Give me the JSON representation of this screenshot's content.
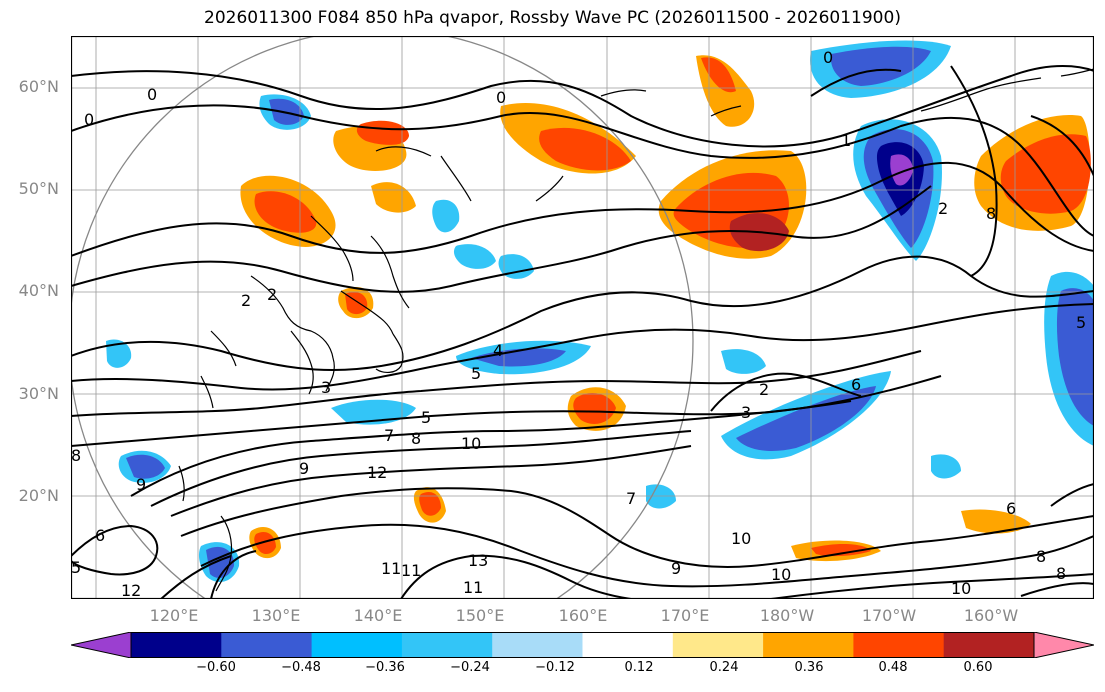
{
  "title": "2026011300 F084 850 hPa qvapor, Rossby Wave PC (2026011500 - 2026011900)",
  "latitude_labels": [
    "60°N",
    "50°N",
    "40°N",
    "30°N",
    "20°N"
  ],
  "longitude_labels": [
    "120°E",
    "130°E",
    "140°E",
    "150°E",
    "160°E",
    "170°E",
    "180°W",
    "170°W",
    "160°W"
  ],
  "colorbar": {
    "colors": [
      "#9b3fd0",
      "#00008b",
      "#3a5bd4",
      "#00bfff",
      "#33c5f7",
      "#a8dcf8",
      "#ffffff",
      "#ffe88a",
      "#ffa500",
      "#ff4500",
      "#b22222",
      "#ff88aa"
    ],
    "tick_labels": [
      "−0.60",
      "−0.48",
      "−0.36",
      "−0.24",
      "−0.12",
      "0.12",
      "0.24",
      "0.36",
      "0.48",
      "0.60"
    ]
  },
  "contour_labels": [
    "0",
    "0",
    "0",
    "0",
    "1",
    "2",
    "2",
    "2",
    "3",
    "3",
    "4",
    "5",
    "5",
    "6",
    "7",
    "7",
    "8",
    "8",
    "9",
    "9",
    "10",
    "10",
    "11",
    "11",
    "12",
    "12",
    "13",
    "5",
    "6",
    "8",
    "8",
    "9",
    "10",
    "10",
    "11",
    "6",
    "2",
    "8",
    "5"
  ],
  "annotation": {
    "range_ring": "circle",
    "projection": "PlateCarree"
  }
}
